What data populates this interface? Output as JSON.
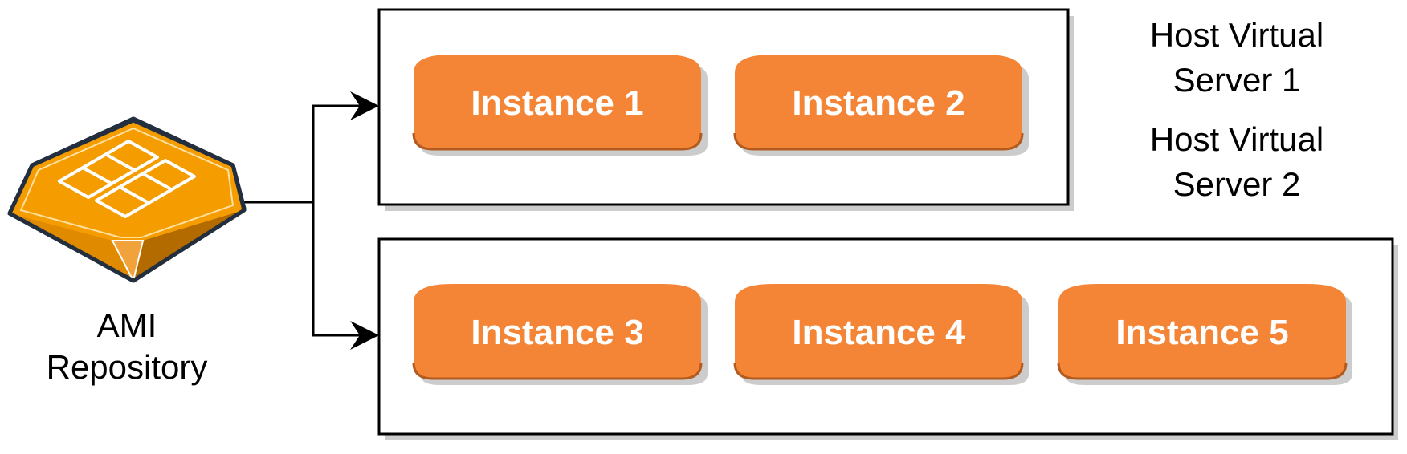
{
  "repository": {
    "label_line1": "AMI",
    "label_line2": "Repository",
    "icon": "ami-repository-icon"
  },
  "hosts": [
    {
      "label_line1": "Host Virtual",
      "label_line2": "Server 1",
      "instances": [
        "Instance 1",
        "Instance 2"
      ]
    },
    {
      "label_line1": "Host Virtual",
      "label_line2": "Server 2",
      "instances": [
        "Instance 3",
        "Instance 4",
        "Instance 5"
      ]
    }
  ],
  "colors": {
    "instance_fill": "#f58536",
    "instance_border": "#b35a1e",
    "shadow": "#cccccc",
    "ami_orange": "#f59d00",
    "ami_dark": "#b36b00",
    "line": "#000000"
  }
}
